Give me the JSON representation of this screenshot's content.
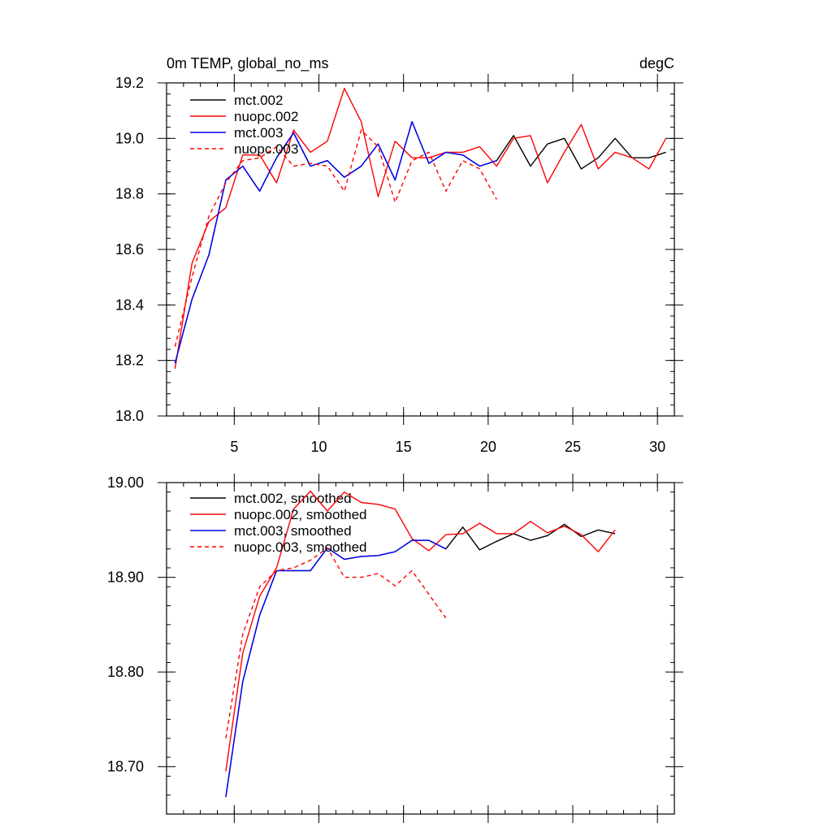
{
  "chart_data": [
    {
      "type": "line",
      "title": "0m TEMP, global_no_ms",
      "units": "degC",
      "xlabel": "",
      "ylabel": "",
      "xlim": [
        1,
        31
      ],
      "ylim": [
        18.0,
        19.2
      ],
      "xticks": [
        5,
        10,
        15,
        20,
        25,
        30
      ],
      "xtick_labels": [
        "5",
        "10",
        "15",
        "20",
        "25",
        "30"
      ],
      "yticks": [
        18.0,
        18.2,
        18.4,
        18.6,
        18.8,
        19.0,
        19.2
      ],
      "ytick_labels": [
        "18.0",
        "18.2",
        "18.4",
        "18.6",
        "18.8",
        "19.0",
        "19.2"
      ],
      "legend_position": "top-left",
      "grid": false,
      "series": [
        {
          "name": "mct.002",
          "color": "#000000",
          "dash": "solid",
          "x": [
            1.5,
            2.5,
            3.5,
            4.5,
            5.5,
            6.5,
            7.5,
            8.5,
            9.5,
            10.5,
            11.5,
            12.5,
            13.5,
            14.5,
            15.5,
            16.5,
            17.5,
            18.5,
            19.5,
            20.5,
            21.5,
            22.5,
            23.5,
            24.5,
            25.5,
            26.5,
            27.5,
            28.5,
            29.5,
            30.5
          ],
          "y": [
            18.19,
            18.42,
            18.58,
            18.85,
            18.9,
            18.81,
            18.93,
            19.02,
            18.9,
            18.92,
            18.86,
            18.9,
            18.98,
            18.85,
            19.06,
            18.91,
            18.95,
            18.94,
            18.9,
            18.92,
            19.01,
            18.9,
            18.98,
            19.0,
            18.89,
            18.93,
            19.0,
            18.93,
            18.93,
            18.95
          ]
        },
        {
          "name": "nuopc.002",
          "color": "#ff0000",
          "dash": "solid",
          "x": [
            1.5,
            2.5,
            3.5,
            4.5,
            5.5,
            6.5,
            7.5,
            8.5,
            9.5,
            10.5,
            11.5,
            12.5,
            13.5,
            14.5,
            15.5,
            16.5,
            17.5,
            18.5,
            19.5,
            20.5,
            21.5,
            22.5,
            23.5,
            24.5,
            25.5,
            26.5,
            27.5,
            28.5,
            29.5,
            30.5
          ],
          "y": [
            18.17,
            18.55,
            18.7,
            18.75,
            18.94,
            18.94,
            18.84,
            19.03,
            18.95,
            18.99,
            19.18,
            19.06,
            18.79,
            18.99,
            18.93,
            18.93,
            18.95,
            18.95,
            18.97,
            18.9,
            19.0,
            19.01,
            18.84,
            18.95,
            19.05,
            18.89,
            18.95,
            18.93,
            18.89,
            19.0
          ]
        },
        {
          "name": "mct.003",
          "color": "#0000ff",
          "dash": "solid",
          "x": [
            1.5,
            2.5,
            3.5,
            4.5,
            5.5,
            6.5,
            7.5,
            8.5,
            9.5,
            10.5,
            11.5,
            12.5,
            13.5,
            14.5,
            15.5,
            16.5,
            17.5,
            18.5,
            19.5,
            20.5
          ],
          "y": [
            18.19,
            18.42,
            18.58,
            18.85,
            18.9,
            18.81,
            18.93,
            19.02,
            18.9,
            18.92,
            18.86,
            18.9,
            18.98,
            18.85,
            19.06,
            18.91,
            18.95,
            18.94,
            18.9,
            18.92
          ]
        },
        {
          "name": "nuopc.003",
          "color": "#ff0000",
          "dash": "dashed",
          "x": [
            1.5,
            2.5,
            3.5,
            4.5,
            5.5,
            6.5,
            7.5,
            8.5,
            9.5,
            10.5,
            11.5,
            12.5,
            13.5,
            14.5,
            15.5,
            16.5,
            17.5,
            18.5,
            19.5,
            20.5
          ],
          "y": [
            18.25,
            18.5,
            18.72,
            18.84,
            18.92,
            18.93,
            18.97,
            18.9,
            18.91,
            18.9,
            18.81,
            19.03,
            18.97,
            18.77,
            18.92,
            18.95,
            18.81,
            18.92,
            18.89,
            18.78
          ]
        }
      ]
    },
    {
      "type": "line",
      "title": "",
      "xlabel": "",
      "ylabel": "",
      "xlim": [
        1,
        31
      ],
      "ylim": [
        18.65,
        19.0
      ],
      "xticks": [
        5,
        10,
        15,
        20,
        25,
        30
      ],
      "xtick_labels": [],
      "yticks": [
        18.7,
        18.8,
        18.9,
        19.0
      ],
      "ytick_labels": [
        "18.70",
        "18.80",
        "18.90",
        "19.00"
      ],
      "legend_position": "top-left",
      "grid": false,
      "series": [
        {
          "name": "mct.002, smoothed",
          "color": "#000000",
          "dash": "solid",
          "x": [
            4.5,
            5.5,
            6.5,
            7.5,
            8.5,
            9.5,
            10.5,
            11.5,
            12.5,
            13.5,
            14.5,
            15.5,
            16.5,
            17.5,
            18.5,
            19.5,
            20.5,
            21.5,
            22.5,
            23.5,
            24.5,
            25.5,
            26.5,
            27.5
          ],
          "y": [
            18.668,
            18.79,
            18.86,
            18.907,
            18.907,
            18.907,
            18.931,
            18.919,
            18.922,
            18.923,
            18.927,
            18.939,
            18.939,
            18.93,
            18.953,
            18.929,
            18.938,
            18.946,
            18.939,
            18.944,
            18.956,
            18.943,
            18.95,
            18.946
          ]
        },
        {
          "name": "nuopc.002, smoothed",
          "color": "#ff0000",
          "dash": "solid",
          "x": [
            4.5,
            5.5,
            6.5,
            7.5,
            8.5,
            9.5,
            10.5,
            11.5,
            12.5,
            13.5,
            14.5,
            15.5,
            16.5,
            17.5,
            18.5,
            19.5,
            20.5,
            21.5,
            22.5,
            23.5,
            24.5,
            25.5,
            26.5,
            27.5
          ],
          "y": [
            18.695,
            18.82,
            18.88,
            18.91,
            18.972,
            18.991,
            18.97,
            18.99,
            18.979,
            18.977,
            18.972,
            18.941,
            18.928,
            18.945,
            18.946,
            18.957,
            18.946,
            18.946,
            18.959,
            18.947,
            18.954,
            18.945,
            18.927,
            18.95
          ]
        },
        {
          "name": "mct.003, smoothed",
          "color": "#0000ff",
          "dash": "solid",
          "x": [
            4.5,
            5.5,
            6.5,
            7.5,
            8.5,
            9.5,
            10.5,
            11.5,
            12.5,
            13.5,
            14.5,
            15.5,
            16.5,
            17.5
          ],
          "y": [
            18.668,
            18.79,
            18.86,
            18.907,
            18.907,
            18.907,
            18.931,
            18.919,
            18.922,
            18.923,
            18.927,
            18.939,
            18.939,
            18.93
          ]
        },
        {
          "name": "nuopc.003, smoothed",
          "color": "#ff0000",
          "dash": "dashed",
          "x": [
            4.5,
            5.5,
            6.5,
            7.5,
            8.5,
            9.5,
            10.5,
            11.5,
            12.5,
            13.5,
            14.5,
            15.5,
            16.5,
            17.5
          ],
          "y": [
            18.73,
            18.84,
            18.89,
            18.907,
            18.91,
            18.918,
            18.931,
            18.9,
            18.9,
            18.904,
            18.891,
            18.907,
            18.882,
            18.857
          ]
        }
      ]
    }
  ]
}
